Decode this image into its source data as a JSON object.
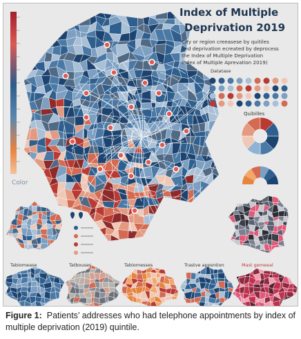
{
  "figure": {
    "title_lines": [
      "Index of Multiple",
      "Deprivation 2019"
    ],
    "subtitle_lines": [
      "City or region creeasese by quitiles",
      "and deprivation ecreated by deprocess",
      "the Index of Multiple Deprivation",
      "Index of Multiple Aprevation 2019)"
    ],
    "legend_heading": "Datatase",
    "quintiles_heading": "Quibilles",
    "color_label": "Color",
    "panel_labels": [
      "Tabiomease",
      "Tatbouses",
      "Tabiomesses",
      "Trastve appsntion",
      "Mast gemeeal"
    ],
    "caption": {
      "label": "Figure 1:",
      "text": "Patients’ addresses who had telephone appointments by index of multiple deprivation (2019) quintile."
    }
  }
}
